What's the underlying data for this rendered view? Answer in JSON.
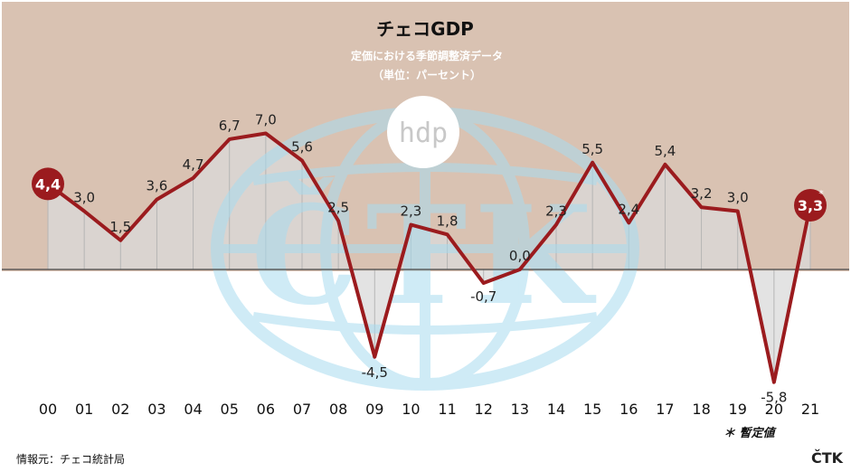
{
  "chart_data": {
    "type": "line",
    "title": "チェコGDP",
    "subtitle": "定価における季節調整済データ",
    "unit_note": "（単位：パーセント）",
    "categories": [
      "00",
      "01",
      "02",
      "03",
      "04",
      "05",
      "06",
      "07",
      "08",
      "09",
      "10",
      "11",
      "12",
      "13",
      "14",
      "15",
      "16",
      "17",
      "18",
      "19",
      "20",
      "21"
    ],
    "series": [
      {
        "values": [
          4.4,
          3.0,
          1.5,
          3.6,
          4.7,
          6.7,
          7.0,
          5.6,
          2.5,
          -4.5,
          2.3,
          1.8,
          -0.7,
          0.0,
          2.3,
          5.5,
          2.4,
          5.4,
          3.2,
          3.0,
          -5.8,
          3.3
        ],
        "labels": [
          "4,4",
          "3,0",
          "1,5",
          "3,6",
          "4,7",
          "6,7",
          "7,0",
          "5,6",
          "2,5",
          "-4,5",
          "2,3",
          "1,8",
          "-0,7",
          "0,0",
          "2,3",
          "5,5",
          "2,4",
          "5,4",
          "3,2",
          "3,0",
          "-5,8",
          "3,3"
        ],
        "color": "#9b1b1e"
      }
    ],
    "highlighted_points": [
      0,
      21
    ],
    "provisional_marker": "*",
    "provisional_note": "＊ 暫定値",
    "ylim": [
      -6.5,
      12
    ],
    "grid": false,
    "colors": {
      "line": "#9b1b1e",
      "background": "#d9c2b2",
      "fill": "#d9d9d9",
      "zero_line": "#444444",
      "watermark": "#a8dcf0"
    }
  },
  "source": "情報元：チェコ統計局",
  "brand": "ČTK",
  "watermark": {
    "text": "ČTK",
    "logo_text": "hdp"
  }
}
